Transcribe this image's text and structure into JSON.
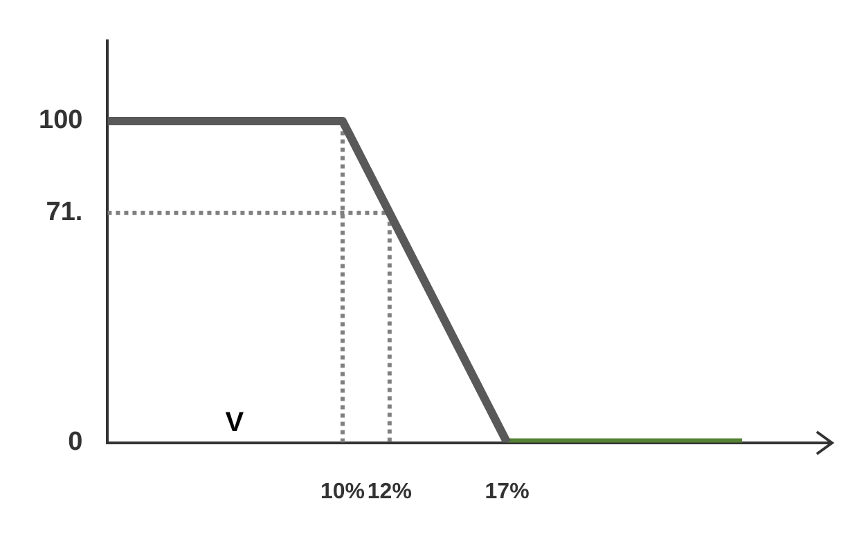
{
  "chart_data": {
    "type": "line",
    "xlim": [
      0,
      30
    ],
    "ylim": [
      0,
      125
    ],
    "xticks": [
      {
        "value": 10,
        "label": "10%"
      },
      {
        "value": 12,
        "label": "12%"
      },
      {
        "value": 17,
        "label": "17%"
      }
    ],
    "yticks": [
      0,
      {
        "value": 71.4,
        "label": "71."
      },
      100
    ],
    "grid": false,
    "legend": false,
    "marker": "none",
    "annotations": [
      "V"
    ],
    "series": [
      {
        "color": "#595959",
        "x": [
          0,
          10,
          17
        ],
        "values": [
          100,
          100,
          0
        ]
      },
      {
        "color": "#548235",
        "x": [
          17,
          27
        ],
        "values": [
          0,
          0
        ]
      },
      {
        "color": "#808080",
        "line_style": "dotted",
        "x": [
          10,
          10
        ],
        "values": [
          0,
          100
        ]
      },
      {
        "color": "#808080",
        "line_style": "dotted",
        "x": [
          0,
          12,
          12
        ],
        "values": [
          71.4,
          71.4,
          0
        ]
      }
    ]
  }
}
